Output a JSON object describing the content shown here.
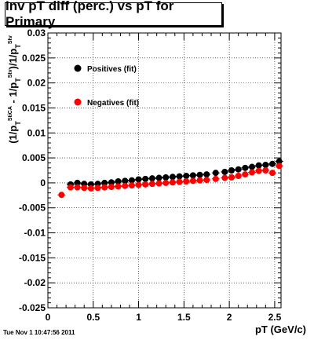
{
  "title": "Inv pT diff (perc.) vs pT for Primary",
  "timestamp": "Tue Nov  1 10:47:56 2011",
  "chart_data": {
    "type": "scatter",
    "title": "Inv pT diff (perc.) vs pT for Primary",
    "xlabel": "pT (GeV/c)",
    "ylabel": {
      "parts": [
        "(1/p",
        "T",
        "StiCA",
        " - 1/p",
        "T",
        "Stv",
        ")/1/p",
        "T",
        "Stv"
      ]
    },
    "xlim": [
      0,
      2.57
    ],
    "ylim": [
      -0.025,
      0.03
    ],
    "x_ticks": [
      0,
      0.5,
      1,
      1.5,
      2,
      2.5
    ],
    "x_tick_labels": [
      "0",
      "0.5",
      "1",
      "1.5",
      "2",
      "2.5"
    ],
    "y_ticks": [
      -0.025,
      -0.02,
      -0.015,
      -0.01,
      -0.005,
      0,
      0.005,
      0.01,
      0.015,
      0.02,
      0.025,
      0.03
    ],
    "y_tick_labels": [
      "-0.025",
      "-0.02",
      "-0.015",
      "-0.01",
      "-0.005",
      "0",
      "0.005",
      "0.01",
      "0.015",
      "0.02",
      "0.025",
      "0.03"
    ],
    "grid": true,
    "legend_position": "upper-left",
    "series": [
      {
        "name": "Positives (fit)",
        "color": "#000000",
        "x": [
          0.25,
          0.325,
          0.4,
          0.475,
          0.55,
          0.625,
          0.7,
          0.775,
          0.85,
          0.925,
          1.0,
          1.075,
          1.15,
          1.225,
          1.3,
          1.375,
          1.45,
          1.525,
          1.6,
          1.675,
          1.75,
          1.85,
          1.95,
          2.025,
          2.1,
          2.175,
          2.25,
          2.325,
          2.4,
          2.475,
          2.55
        ],
        "y": [
          -0.0003,
          0.0,
          -0.0002,
          -0.0003,
          -0.0002,
          0.0,
          0.0001,
          0.0003,
          0.0004,
          0.0005,
          0.0007,
          0.0008,
          0.0009,
          0.001,
          0.0011,
          0.0012,
          0.0013,
          0.0014,
          0.0015,
          0.0016,
          0.0017,
          0.002,
          0.0022,
          0.0025,
          0.0027,
          0.003,
          0.0032,
          0.0035,
          0.0036,
          0.0038,
          0.0043
        ]
      },
      {
        "name": "Negatives (fit)",
        "color": "#ff0000",
        "x": [
          0.15,
          0.25,
          0.325,
          0.4,
          0.475,
          0.55,
          0.625,
          0.7,
          0.775,
          0.85,
          0.925,
          1.0,
          1.075,
          1.15,
          1.225,
          1.3,
          1.375,
          1.45,
          1.525,
          1.6,
          1.675,
          1.75,
          1.85,
          1.95,
          2.025,
          2.1,
          2.175,
          2.25,
          2.325,
          2.4,
          2.475,
          2.55
        ],
        "y": [
          -0.0024,
          -0.0009,
          -0.0009,
          -0.001,
          -0.0011,
          -0.001,
          -0.0009,
          -0.0008,
          -0.0007,
          -0.0006,
          -0.0005,
          -0.0004,
          -0.0003,
          -0.0002,
          -0.0001,
          0.0,
          0.0001,
          0.0002,
          0.0003,
          0.0004,
          0.0005,
          0.0006,
          0.0008,
          0.001,
          0.0011,
          0.0014,
          0.0017,
          0.0021,
          0.0024,
          0.0025,
          0.002,
          0.0034
        ]
      }
    ]
  }
}
